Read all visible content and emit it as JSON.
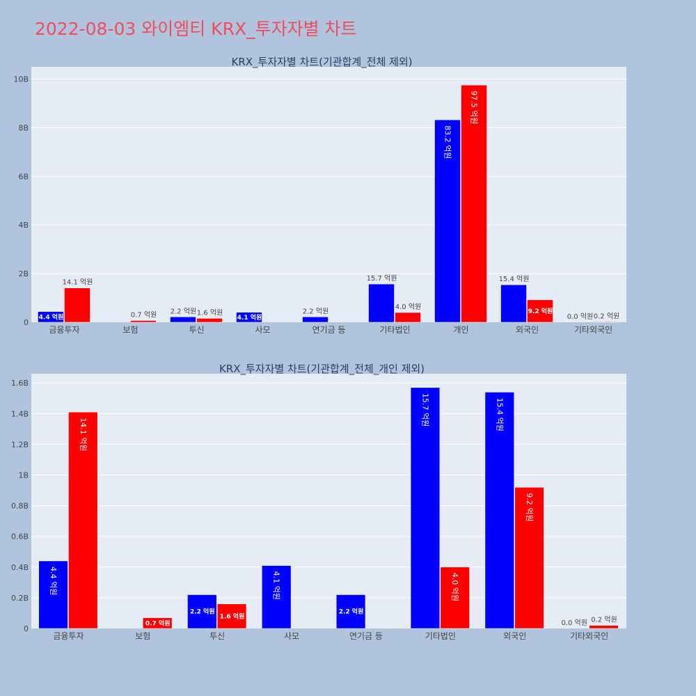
{
  "page": {
    "title": "2022-08-03 와이엠티 KRX_투자자별 차트",
    "title_color": "#ef4d5e",
    "background": "#b0c4de",
    "plot_background": "#e5ecf6"
  },
  "chart_data": [
    {
      "type": "bar",
      "title": "KRX_투자자별 차트(기관합계_전체 제외)",
      "categories": [
        "금융투자",
        "보험",
        "투신",
        "사모",
        "연기금 등",
        "기타법인",
        "개인",
        "외국인",
        "기타외국인"
      ],
      "series": [
        {
          "color": "#0000ff",
          "values": [
            0.44,
            null,
            0.22,
            0.41,
            0.22,
            1.57,
            8.32,
            1.54,
            0.0
          ],
          "labels": [
            "4.4 억원",
            "",
            "2.2 억원",
            "4.1 억원",
            "2.2 억원",
            "15.7 억원",
            "83.2 억원",
            "15.4 억원",
            "0.0 억원"
          ]
        },
        {
          "color": "#ff0000",
          "values": [
            1.41,
            0.07,
            0.16,
            null,
            null,
            0.4,
            9.75,
            0.92,
            0.02
          ],
          "labels": [
            "14.1 억원",
            "0.7 억원",
            "1.6 억원",
            "",
            "",
            "4.0 억원",
            "97.5 억원",
            "9.2 억원",
            "0.2 억원"
          ]
        }
      ],
      "ylim": [
        0,
        10.5
      ],
      "yticks": [
        0,
        2,
        4,
        6,
        8,
        10
      ],
      "ytick_labels": [
        "0",
        "2B",
        "4B",
        "6B",
        "8B",
        "10B"
      ],
      "grid": true
    },
    {
      "type": "bar",
      "title": "KRX_투자자별 차트(기관합계_전체_개인 제외)",
      "categories": [
        "금융투자",
        "보험",
        "투신",
        "사모",
        "연기금 등",
        "기타법인",
        "외국인",
        "기타외국인"
      ],
      "series": [
        {
          "color": "#0000ff",
          "values": [
            0.44,
            null,
            0.22,
            0.41,
            0.22,
            1.57,
            1.54,
            0.0
          ],
          "labels": [
            "4.4 억원",
            "",
            "2.2 억원",
            "4.1 억원",
            "2.2 억원",
            "15.7 억원",
            "15.4 억원",
            "0.0 억원"
          ]
        },
        {
          "color": "#ff0000",
          "values": [
            1.41,
            0.07,
            0.16,
            null,
            null,
            0.4,
            0.92,
            0.02
          ],
          "labels": [
            "14.1 억원",
            "0.7 억원",
            "1.6 억원",
            "",
            "",
            "4.0 억원",
            "9.2 억원",
            "0.2 억원"
          ]
        }
      ],
      "ylim": [
        0,
        1.66
      ],
      "yticks": [
        0,
        0.2,
        0.4,
        0.6,
        0.8,
        1.0,
        1.2,
        1.4,
        1.6
      ],
      "ytick_labels": [
        "0",
        "0.2B",
        "0.4B",
        "0.6B",
        "0.8B",
        "1B",
        "1.2B",
        "1.4B",
        "1.6B"
      ],
      "grid": true
    }
  ]
}
